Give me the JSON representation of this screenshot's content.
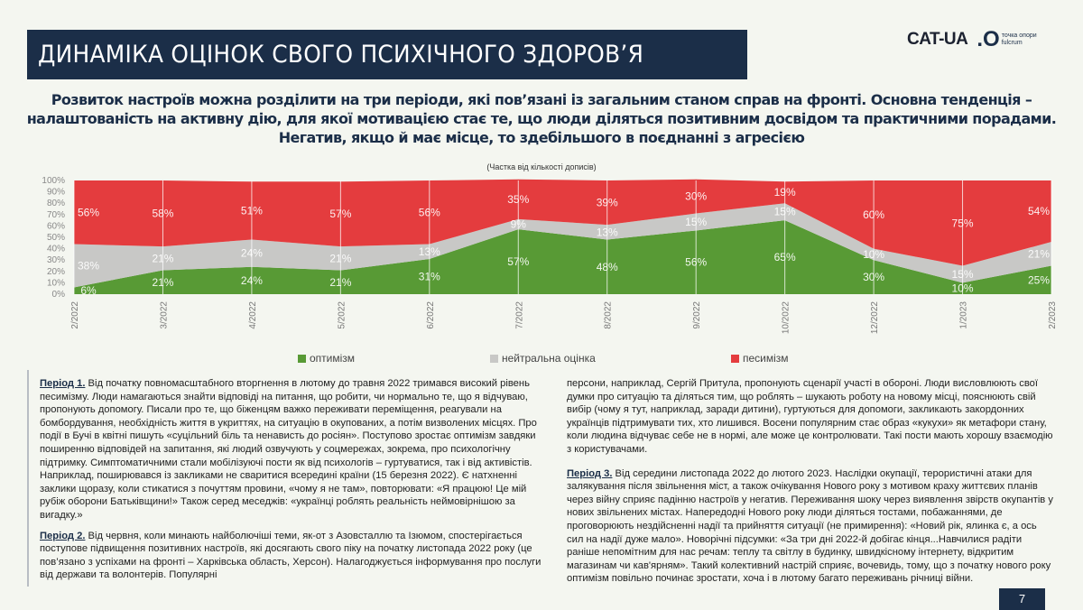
{
  "header": {
    "title": "ДИНАМІКА ОЦІНОК СВОГО ПСИХІЧНОГО ЗДОРОВ’Я"
  },
  "logos": {
    "cat_ua": "CAT-UA",
    "fulcrum_line1": "точка опори",
    "fulcrum_line2": "fulcrum"
  },
  "subtitle": "Розвиток настроїв можна розділити на три періоди, які пов’язані із загальним станом справ на фронті. Основна тенденція – налаштованість на активну дію, для якої мотивацією стає те, що люди діляться позитивним досвідом та практичними порадами. Негатив, якщо й має місце, то здебільшого в поєднанні з агресією",
  "chart_data": {
    "type": "area",
    "stacked": true,
    "title": "",
    "subtitle": "(Частка від кількості дописів)",
    "categories": [
      "2/2022",
      "3/2022",
      "4/2022",
      "5/2022",
      "6/2022",
      "7/2022",
      "8/2022",
      "9/2022",
      "10/2022",
      "12/2022",
      "1/2023",
      "2/2023"
    ],
    "yticks": [
      "0%",
      "10%",
      "20%",
      "30%",
      "40%",
      "50%",
      "60%",
      "70%",
      "80%",
      "90%",
      "100%"
    ],
    "ylim": [
      0,
      100
    ],
    "grid": "vertical",
    "legend_position": "bottom",
    "series": [
      {
        "name": "оптимізм",
        "color": "#589a35",
        "values": [
          6,
          21,
          24,
          21,
          31,
          57,
          48,
          56,
          65,
          30,
          10,
          25
        ]
      },
      {
        "name": "нейтральна оцінка",
        "color": "#c8c8c6",
        "values": [
          38,
          21,
          24,
          21,
          13,
          9,
          13,
          15,
          15,
          10,
          15,
          21
        ]
      },
      {
        "name": "песимізм",
        "color": "#e43c3e",
        "values": [
          56,
          58,
          51,
          57,
          56,
          35,
          39,
          30,
          19,
          60,
          75,
          54
        ]
      }
    ]
  },
  "text": {
    "p1_label": "Період 1.",
    "p1": " Від початку повномасштабного вторгнення в лютому до травня 2022 тримався високий рівень песимізму. Люди намагаються знайти відповіді на питання, що робити, чи нормально те, що я відчуваю, пропонують допомогу. Писали про те, що біженцям важко переживати переміщення, реагували на бомбордування, необхідність життя в укриттях, на ситуацію в окупованих, а потім визволених місцях. Про події в Бучі в квітні пишуть «суцільний біль та ненависть до росіян». Поступово зростає оптимізм завдяки поширенню відповідей на запитання, які людий озвучують у соцмережах, зокрема, про психологічну підтримку. Симптоматичними стали мобілізуючі пости як від психологів – гуртуватися, так і від активістів. Наприклад, поширювався із закликами не сваритися всередині країни (15 березня 2022). Є натхненні заклики щоразу, коли стикатися з почуттям провини, «чому я не там», повторювати: «Я працюю! Це мій рубіж оборони Батьківщини!» Також серед меседжів: «українці роблять реальність неймовірнішою за вигадку.»",
    "p2_label": "Період 2.",
    "p2": " Від червня, коли минають найболючіші теми, як-от з Азовсталлю та Ізюмом, спостерігається поступове підвищення позитивних настроїв, які досягають свого піку на початку листопада 2022 року (це пов’язано з успіхами на фронті – Харківська область, Херсон). Налагоджується інформування про послуги від держави та волонтерів. Популярні",
    "p2_cont": "персони, наприклад, Сергій Притула, пропонують сценарії участі в обороні. Люди висловлюють свої думки про ситуацію та діляться тим, що роблять – шукають роботу на новому місці, пояснюють свій вибір (чому я тут, наприклад, заради дитини), гуртуються для допомоги, закликають закордонних українців підтримувати тих, хто лишився. Восени популярним стає образ «кукухи» як метафори стану, коли людина відчуває себе не в нормі, але може це контролювати. Такі пости мають хорошу взаємодію з користувачами.",
    "p3_label": "Період 3.",
    "p3": " Від середини листопада 2022 до лютого 2023. Наслідки окупації, терористичні атаки для залякування після звільнення міст, а також очікування Нового року з мотивом краху життєвих планів через війну сприяє падінню настроїв у негатив. Переживання шоку через виявлення звірств окупантів у нових звільнених містах. Напередодні Нового року люди діляться тостами, побажаннями, де проговорюють нездійсненні надії та прийняття ситуації (не примирення): «Новий рік, ялинка є, а ось сил на надії дуже мало». Новорічні підсумки: «За три дні 2022-й добігає кінця...Навчилися радіти раніше непомітним для нас речам: теплу та світлу в будинку, швидкісному інтернету, відкритим магазинам чи кав'ярням». Такий колективний настрій сприяє, вочевидь, тому, що з початку нового року оптимізм повільно починає зростати, хоча і в лютому багато переживань річниці війни."
  },
  "page_number": "7"
}
